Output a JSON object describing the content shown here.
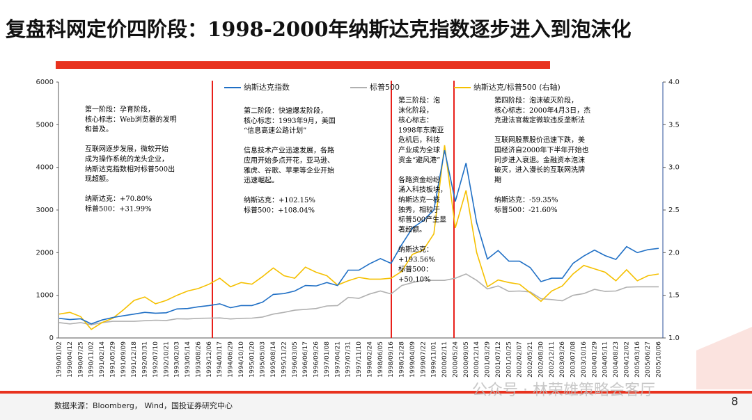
{
  "slide": {
    "title": "复盘科网定价四阶段：1998-2000年纳斯达克指数逐步进入到泡沫化",
    "source": "数据来源：Bloomberg， Wind，国投证券研究中心",
    "page": "8",
    "watermark": "公众号 · 林荣雄策略会客厅"
  },
  "chart_data": {
    "type": "line",
    "categories": [
      "1990/01/02",
      "1990/04/12",
      "1990/07/25",
      "1990/11/02",
      "1991/02/14",
      "1991/05/29",
      "1991/09/09",
      "1991/12/18",
      "1992/03/31",
      "1992/07/10",
      "1992/10/21",
      "1993/02/03",
      "1993/05/14",
      "1993/08/26",
      "1993/12/06",
      "1994/03/17",
      "1994/06/29",
      "1994/10/10",
      "1995/01/20",
      "1995/05/03",
      "1995/08/14",
      "1995/11/22",
      "1996/03/05",
      "1996/06/17",
      "1996/09/26",
      "1997/01/08",
      "1997/04/21",
      "1997/07/31",
      "1997/11/10",
      "1998/02/24",
      "1998/06/05",
      "1998/09/16",
      "1998/12/28",
      "1999/04/09",
      "1999/07/22",
      "1999/11/01",
      "2000/02/11",
      "2000/05/24",
      "2000/09/05",
      "2000/12/14",
      "2001/03/29",
      "2001/07/12",
      "2001/10/25",
      "2002/02/07",
      "2002/05/21",
      "2002/08/30",
      "2002/12/11",
      "2003/03/26",
      "2003/07/08",
      "2003/10/16",
      "2004/01/29",
      "2004/05/11",
      "2004/08/23",
      "2004/12/02",
      "2005/03/16",
      "2005/06/27",
      "2005/10/06"
    ],
    "series": [
      {
        "name": "纳斯达克指数",
        "color": "#1f6fc5",
        "values": [
          460,
          430,
          450,
          330,
          420,
          480,
          520,
          560,
          600,
          580,
          590,
          680,
          690,
          730,
          760,
          800,
          710,
          760,
          760,
          840,
          1020,
          1040,
          1100,
          1230,
          1220,
          1300,
          1230,
          1590,
          1590,
          1740,
          1860,
          1750,
          2190,
          2580,
          2750,
          3000,
          4400,
          3200,
          4100,
          2700,
          1850,
          2050,
          1800,
          1800,
          1650,
          1320,
          1400,
          1400,
          1750,
          1920,
          2060,
          1930,
          1840,
          2140,
          2000,
          2070,
          2100
        ]
      },
      {
        "name": "标普500",
        "color": "#b0b0b0",
        "values": [
          360,
          330,
          360,
          310,
          360,
          390,
          390,
          390,
          405,
          415,
          410,
          450,
          445,
          460,
          465,
          470,
          445,
          460,
          465,
          490,
          560,
          600,
          650,
          670,
          690,
          750,
          760,
          950,
          930,
          1030,
          1100,
          1030,
          1230,
          1300,
          1350,
          1350,
          1350,
          1400,
          1500,
          1350,
          1150,
          1220,
          1090,
          1100,
          1080,
          920,
          900,
          870,
          1000,
          1040,
          1140,
          1090,
          1100,
          1190,
          1200,
          1200,
          1200
        ]
      },
      {
        "name": "纳斯达克/标普500 (右轴)",
        "color": "#f5c000",
        "axis": "y2",
        "values": [
          1.28,
          1.3,
          1.25,
          1.1,
          1.18,
          1.23,
          1.33,
          1.44,
          1.48,
          1.4,
          1.44,
          1.5,
          1.55,
          1.58,
          1.63,
          1.7,
          1.6,
          1.65,
          1.63,
          1.72,
          1.82,
          1.73,
          1.7,
          1.83,
          1.77,
          1.73,
          1.62,
          1.67,
          1.71,
          1.69,
          1.69,
          1.7,
          1.78,
          1.98,
          2.03,
          2.22,
          3.26,
          2.29,
          2.73,
          2.0,
          1.6,
          1.68,
          1.65,
          1.63,
          1.53,
          1.43,
          1.55,
          1.61,
          1.75,
          1.85,
          1.81,
          1.77,
          1.67,
          1.8,
          1.67,
          1.73,
          1.75
        ]
      }
    ],
    "ylim": [
      0,
      6000
    ],
    "yticks": [
      0,
      1000,
      2000,
      3000,
      4000,
      5000,
      6000
    ],
    "y2lim": [
      1,
      4
    ],
    "y2ticks": [
      {
        "value": 1,
        "label": "1.0"
      },
      1.5,
      {
        "value": 2,
        "label": "2.0"
      },
      2.5,
      {
        "value": 3,
        "label": "3.0"
      },
      3.5,
      {
        "value": 4,
        "label": "4.0"
      }
    ],
    "annotations": [
      {
        "paragraphs": [
          [
            "第一阶段：孕育阶段，",
            "核心标志：Web浏览器的发明",
            "和普及。"
          ],
          [
            "互联网逐步发展，微软开始",
            "成为操作系统的龙头企业，",
            "纳斯达克指数相对标普500出",
            "现超额。"
          ],
          [
            "纳斯达克：+70.80%",
            "标普500：+31.99%"
          ]
        ]
      },
      {
        "paragraphs": [
          [
            "第二阶段：快速爆发阶段，",
            "核心标志：1993年9月，美国",
            "“信息高速公路计划”"
          ],
          [
            "信息技术产业迅速发展，各路",
            "应用开始多点开花，亚马逊、",
            "雅虎、谷歌、苹果等企业开始",
            "迅速崛起。"
          ],
          [
            "纳斯达克：+102.15%",
            "标普500：+108.04%"
          ]
        ]
      },
      {
        "paragraphs": [
          [
            "第三阶段：泡",
            "沫化阶段，",
            "核心标志：",
            "1998年东南亚",
            "危机后，科技",
            "产业成为全球",
            "资金“避风港”"
          ],
          [
            "各路资金纷纷",
            "涌入科技板块，",
            "纳斯达克一枝",
            "独秀，相较于",
            "标普500产生显",
            "著超额。"
          ],
          [
            "纳斯达克：",
            "+193.56%",
            "标普500：",
            "+50.10%"
          ]
        ]
      },
      {
        "paragraphs": [
          [
            "第四阶段：泡沫破灭阶段，",
            "核心标志：2000年4月3日，杰",
            "克逊法官裁定微软违反垄断法"
          ],
          [
            "互联网股票股价迅速下跌，美",
            "国经济自2000年下半年开始也",
            "同步进入衰退。金融资本泡沫",
            "破灭，进入漫长的互联网洗牌",
            "期"
          ],
          [
            "纳斯达克：-59.35%",
            "标普500：-21.60%"
          ]
        ]
      }
    ]
  }
}
